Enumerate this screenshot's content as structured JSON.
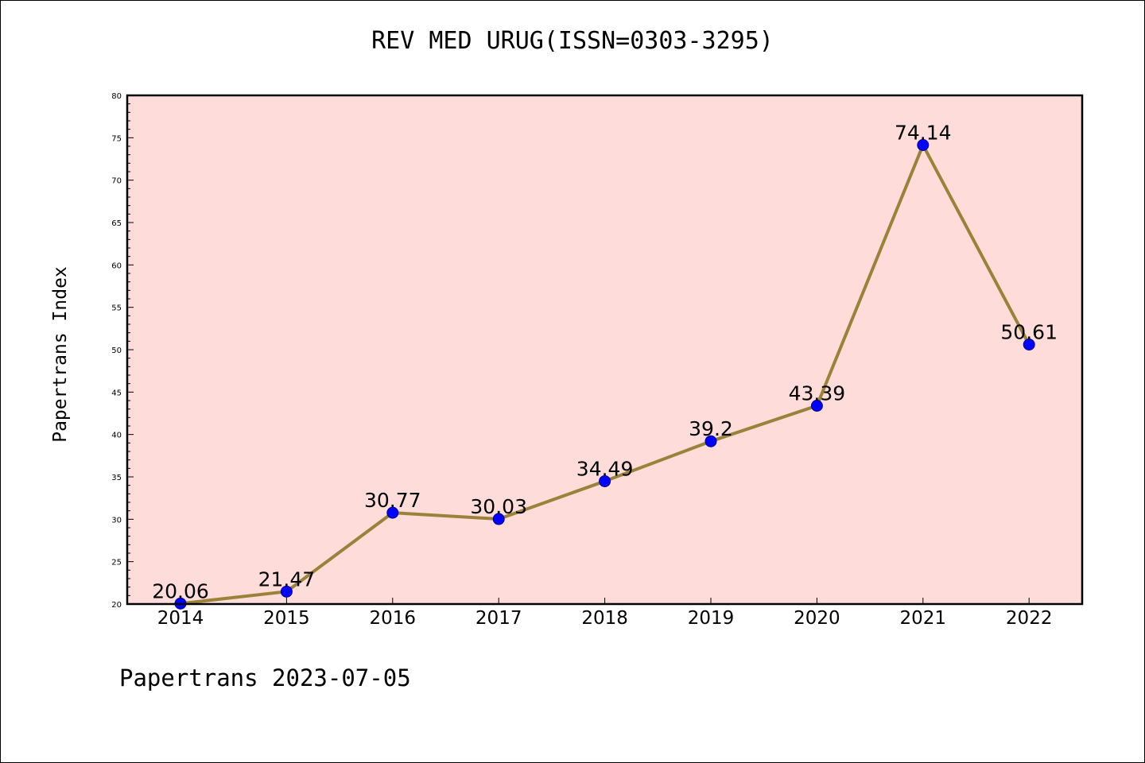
{
  "chart_data": {
    "type": "line",
    "title": "REV MED URUG(ISSN=0303-3295)",
    "ylabel": "Papertrans Index",
    "xlabel": "",
    "categories": [
      "2014",
      "2015",
      "2016",
      "2017",
      "2018",
      "2019",
      "2020",
      "2021",
      "2022"
    ],
    "series": [
      {
        "values": [
          20.06,
          21.47,
          30.77,
          30.03,
          34.49,
          39.2,
          43.39,
          74.14,
          50.61
        ],
        "data_labels": [
          "20.06",
          "21.47",
          "30.77",
          "30.03",
          "34.49",
          "39.2",
          "43.39",
          "74.14",
          "50.61"
        ]
      }
    ],
    "ylim": [
      20,
      80
    ],
    "yticks": [
      20,
      25,
      30,
      35,
      40,
      45,
      50,
      55,
      60,
      65,
      70,
      75,
      80
    ],
    "grid": false,
    "colors": {
      "plot_background": "#fddcda",
      "line": "#9a8338",
      "marker": "#0000ff"
    }
  },
  "footer": "Papertrans 2023-07-05"
}
